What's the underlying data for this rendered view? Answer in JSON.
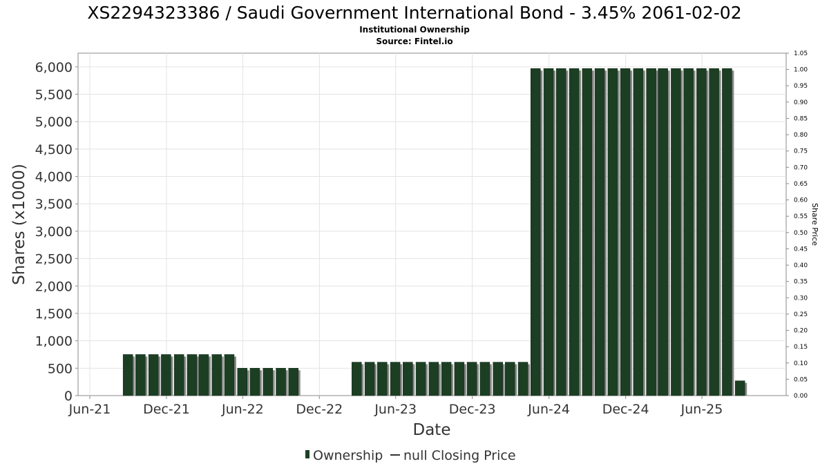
{
  "chart_data": {
    "type": "bar",
    "title": "XS2294323386 / Saudi Government International Bond - 3.45% 2061-02-02",
    "subtitle_1": "Institutional Ownership",
    "subtitle_2": "Source: Fintel.io",
    "xlabel": "Date",
    "ylabel": "Shares (x1000)",
    "y2label": "Share Price",
    "ylim": [
      0,
      6250
    ],
    "y2lim": [
      0,
      1.05
    ],
    "xlim": [
      "2021-06-01",
      "2025-12-01"
    ],
    "x_tick_labels": [
      {
        "label": "Jun-21",
        "date": "2021-06-01"
      },
      {
        "label": "Dec-21",
        "date": "2021-12-01"
      },
      {
        "label": "Jun-22",
        "date": "2022-06-01"
      },
      {
        "label": "Dec-22",
        "date": "2022-12-01"
      },
      {
        "label": "Jun-23",
        "date": "2023-06-01"
      },
      {
        "label": "Dec-23",
        "date": "2023-12-01"
      },
      {
        "label": "Jun-24",
        "date": "2024-06-01"
      },
      {
        "label": "Dec-24",
        "date": "2024-12-01"
      },
      {
        "label": "Jun-25",
        "date": "2025-06-01"
      }
    ],
    "y_ticks": [
      {
        "value": 0,
        "label": "0"
      },
      {
        "value": 500,
        "label": "500"
      },
      {
        "value": 1000,
        "label": "1,000"
      },
      {
        "value": 1500,
        "label": "1,500"
      },
      {
        "value": 2000,
        "label": "2,000"
      },
      {
        "value": 2500,
        "label": "2,500"
      },
      {
        "value": 3000,
        "label": "3,000"
      },
      {
        "value": 3500,
        "label": "3,500"
      },
      {
        "value": 4000,
        "label": "4,000"
      },
      {
        "value": 4500,
        "label": "4,500"
      },
      {
        "value": 5000,
        "label": "5,000"
      },
      {
        "value": 5500,
        "label": "5,500"
      },
      {
        "value": 6000,
        "label": "6,000"
      }
    ],
    "y2_ticks": [
      "0.00",
      "0.05",
      "0.10",
      "0.15",
      "0.20",
      "0.25",
      "0.30",
      "0.35",
      "0.40",
      "0.45",
      "0.50",
      "0.55",
      "0.60",
      "0.65",
      "0.70",
      "0.75",
      "0.80",
      "0.85",
      "0.90",
      "0.95",
      "1.00",
      "1.05"
    ],
    "grid": true,
    "legend_position": "bottom",
    "legend": [
      {
        "label": "Ownership",
        "color": "#1c3f24"
      },
      {
        "label": "null Closing Price",
        "color": "#333333"
      }
    ],
    "series": [
      {
        "name": "Ownership",
        "color": "#1c3f24",
        "points": [
          {
            "x": "2021-08-31",
            "y": 750
          },
          {
            "x": "2021-09-30",
            "y": 750
          },
          {
            "x": "2021-10-31",
            "y": 750
          },
          {
            "x": "2021-11-30",
            "y": 750
          },
          {
            "x": "2021-12-31",
            "y": 750
          },
          {
            "x": "2022-01-31",
            "y": 750
          },
          {
            "x": "2022-02-28",
            "y": 750
          },
          {
            "x": "2022-03-31",
            "y": 750
          },
          {
            "x": "2022-04-30",
            "y": 750
          },
          {
            "x": "2022-05-31",
            "y": 500
          },
          {
            "x": "2022-06-30",
            "y": 500
          },
          {
            "x": "2022-07-31",
            "y": 500
          },
          {
            "x": "2022-08-31",
            "y": 500
          },
          {
            "x": "2022-09-30",
            "y": 500
          },
          {
            "x": "2023-02-28",
            "y": 610
          },
          {
            "x": "2023-03-31",
            "y": 610
          },
          {
            "x": "2023-04-30",
            "y": 610
          },
          {
            "x": "2023-05-31",
            "y": 610
          },
          {
            "x": "2023-06-30",
            "y": 610
          },
          {
            "x": "2023-07-31",
            "y": 610
          },
          {
            "x": "2023-08-31",
            "y": 610
          },
          {
            "x": "2023-09-30",
            "y": 610
          },
          {
            "x": "2023-10-31",
            "y": 610
          },
          {
            "x": "2023-11-30",
            "y": 610
          },
          {
            "x": "2023-12-31",
            "y": 610
          },
          {
            "x": "2024-01-31",
            "y": 610
          },
          {
            "x": "2024-02-29",
            "y": 610
          },
          {
            "x": "2024-03-31",
            "y": 610
          },
          {
            "x": "2024-04-30",
            "y": 5970
          },
          {
            "x": "2024-05-31",
            "y": 5970
          },
          {
            "x": "2024-06-30",
            "y": 5970
          },
          {
            "x": "2024-07-31",
            "y": 5970
          },
          {
            "x": "2024-08-31",
            "y": 5970
          },
          {
            "x": "2024-09-30",
            "y": 5970
          },
          {
            "x": "2024-10-31",
            "y": 5970
          },
          {
            "x": "2024-11-30",
            "y": 5970
          },
          {
            "x": "2024-12-31",
            "y": 5970
          },
          {
            "x": "2025-01-31",
            "y": 5970
          },
          {
            "x": "2025-02-28",
            "y": 5970
          },
          {
            "x": "2025-03-31",
            "y": 5970
          },
          {
            "x": "2025-04-30",
            "y": 5970
          },
          {
            "x": "2025-05-31",
            "y": 5970
          },
          {
            "x": "2025-06-30",
            "y": 5970
          },
          {
            "x": "2025-07-31",
            "y": 5970
          },
          {
            "x": "2025-08-31",
            "y": 270
          }
        ]
      }
    ]
  }
}
